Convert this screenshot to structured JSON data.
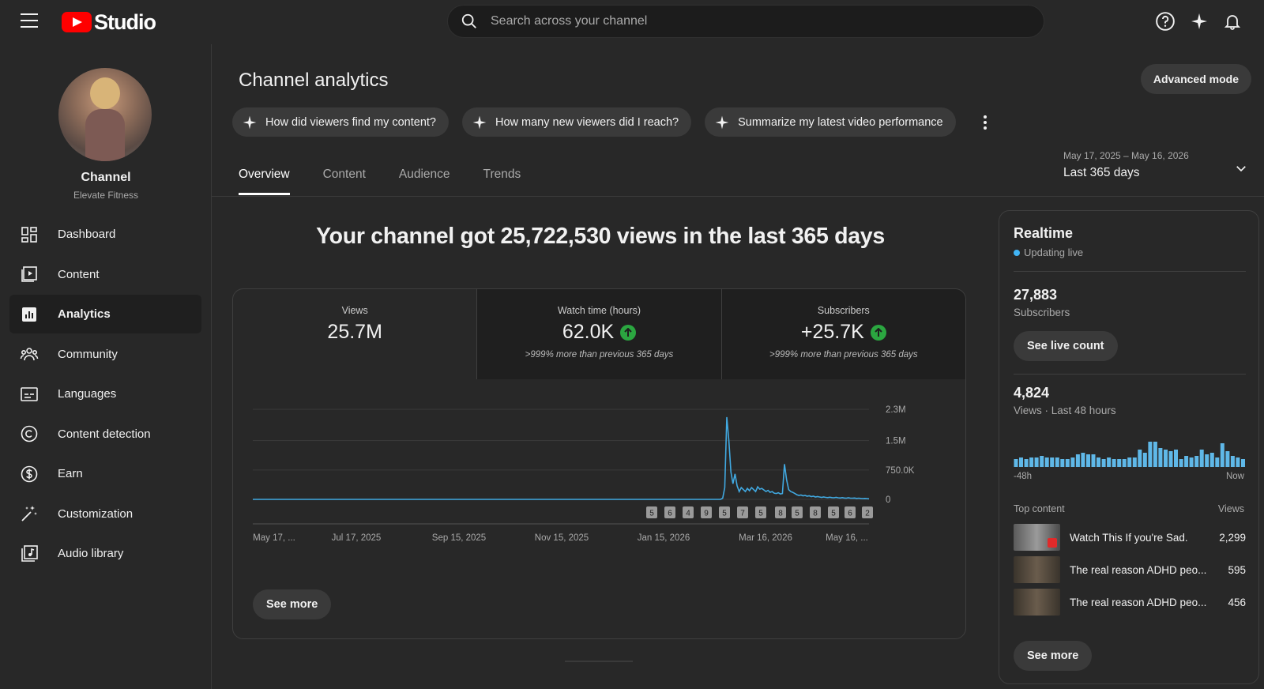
{
  "app": {
    "logo_text": "Studio"
  },
  "search": {
    "placeholder": "Search across your channel"
  },
  "channel": {
    "title": "Channel",
    "name": "Elevate Fitness"
  },
  "sidebar": {
    "items": [
      {
        "label": "Dashboard",
        "icon": "dashboard-icon"
      },
      {
        "label": "Content",
        "icon": "content-icon"
      },
      {
        "label": "Analytics",
        "icon": "analytics-icon",
        "active": true
      },
      {
        "label": "Community",
        "icon": "community-icon"
      },
      {
        "label": "Languages",
        "icon": "languages-icon"
      },
      {
        "label": "Content detection",
        "icon": "copyright-icon"
      },
      {
        "label": "Earn",
        "icon": "dollar-icon"
      },
      {
        "label": "Customization",
        "icon": "magic-wand-icon"
      },
      {
        "label": "Audio library",
        "icon": "audio-library-icon"
      }
    ]
  },
  "main": {
    "title": "Channel analytics",
    "advanced_mode": "Advanced mode",
    "chips": [
      "How did viewers find my content?",
      "How many new viewers did I reach?",
      "Summarize my latest video performance"
    ],
    "tabs": [
      "Overview",
      "Content",
      "Audience",
      "Trends"
    ],
    "date_range": {
      "dates": "May 17, 2025 – May 16, 2026",
      "label": "Last 365 days"
    },
    "headline": "Your channel got 25,722,530 views in the last 365 days",
    "metrics": [
      {
        "label": "Views",
        "value": "25.7M",
        "note": ""
      },
      {
        "label": "Watch time (hours)",
        "value": "62.0K",
        "note": ">999% more than previous 365 days"
      },
      {
        "label": "Subscribers",
        "value": "+25.7K",
        "note": ">999% more than previous 365 days"
      }
    ],
    "see_more": "See more"
  },
  "chart_data": {
    "type": "line",
    "x_labels": [
      "May 17, ...",
      "Jul 17, 2025",
      "Sep 15, 2025",
      "Nov 15, 2025",
      "Jan 15, 2026",
      "Mar 16, 2026",
      "May 16, ..."
    ],
    "y_ticks": [
      "0",
      "750.0K",
      "1.5M",
      "2.3M"
    ],
    "ylim": [
      0,
      2300000
    ],
    "series": [
      {
        "color": "#41a9e1",
        "values": [
          0,
          0,
          0,
          0,
          0,
          0,
          0,
          0,
          0,
          0,
          0,
          0,
          0,
          0,
          0,
          0,
          0,
          0,
          0,
          0,
          0,
          0,
          0,
          0,
          0,
          0,
          0,
          0,
          0,
          0,
          0,
          0,
          0,
          0,
          0,
          0,
          0,
          0,
          0,
          0,
          0,
          0,
          0,
          0,
          0,
          0,
          0,
          0,
          0,
          0,
          0,
          0,
          0,
          0,
          0,
          0,
          0,
          0,
          0,
          0,
          0,
          0,
          0,
          0,
          0,
          0,
          0,
          0,
          0,
          0,
          0,
          0,
          0,
          0,
          0,
          0,
          0,
          0,
          0,
          0,
          0,
          0,
          0,
          0,
          0,
          0,
          0,
          0,
          0,
          0,
          0,
          0,
          0,
          0,
          0,
          0,
          0,
          0,
          0,
          0,
          0,
          0,
          0,
          0,
          0,
          0,
          0,
          0,
          0,
          0,
          0,
          0,
          0,
          0,
          0,
          0,
          0,
          0,
          0,
          0,
          0,
          0,
          0,
          0,
          0,
          0,
          0,
          0,
          0,
          0,
          0,
          0,
          0,
          0,
          0,
          0,
          0,
          0,
          0,
          0,
          0,
          0,
          0,
          0,
          0,
          0,
          0,
          0,
          0,
          0,
          0,
          0,
          0,
          0,
          0,
          0,
          0,
          0,
          0,
          0,
          0,
          0,
          0,
          0,
          0,
          0,
          0,
          0,
          0,
          0,
          0,
          0,
          0,
          0,
          0,
          0,
          0,
          0,
          0,
          0,
          0,
          0,
          0,
          0,
          0,
          0,
          0,
          0,
          0,
          0,
          0,
          0,
          0,
          0,
          0,
          0,
          0,
          0,
          0,
          0,
          0,
          0,
          0,
          0,
          0,
          0,
          0,
          0,
          0,
          0,
          0,
          0,
          0,
          0,
          0,
          0,
          0,
          0,
          0,
          0,
          0,
          0,
          0,
          0,
          0,
          0,
          0,
          0,
          30000,
          300000,
          2100000,
          1500000,
          700000,
          400000,
          650000,
          350000,
          200000,
          300000,
          250000,
          200000,
          280000,
          220000,
          300000,
          250000,
          200000,
          320000,
          260000,
          280000,
          240000,
          200000,
          230000,
          180000,
          200000,
          160000,
          150000,
          170000,
          140000,
          150000,
          900000,
          500000,
          250000,
          200000,
          180000,
          150000,
          120000,
          100000,
          110000,
          90000,
          100000,
          80000,
          90000,
          70000,
          80000,
          60000,
          70000,
          60000,
          50000,
          60000,
          50000,
          45000,
          55000,
          45000,
          40000,
          50000,
          40000,
          35000,
          45000,
          35000,
          30000,
          40000,
          30000,
          30000,
          35000,
          25000,
          30000,
          25000,
          20000,
          25000,
          20000,
          15000
        ]
      }
    ],
    "annotations": [
      "5",
      "6",
      "4",
      "9",
      "5",
      "7",
      "5",
      "8",
      "5",
      "8",
      "5",
      "6",
      "2"
    ]
  },
  "realtime": {
    "title": "Realtime",
    "status": "Updating live",
    "subscribers_value": "27,883",
    "subscribers_label": "Subscribers",
    "see_live_count": "See live count",
    "views_value": "4,824",
    "views_label": "Views · Last 48 hours",
    "axis_start": "-48h",
    "axis_end": "Now",
    "bars": [
      5,
      6,
      5,
      6,
      6,
      7,
      6,
      6,
      6,
      5,
      5,
      6,
      8,
      9,
      8,
      8,
      6,
      5,
      6,
      5,
      5,
      5,
      6,
      6,
      11,
      9,
      16,
      16,
      12,
      11,
      10,
      11,
      5,
      7,
      6,
      7,
      11,
      8,
      9,
      6,
      15,
      10,
      7,
      6,
      5
    ],
    "top_content_label": "Top content",
    "views_col_label": "Views",
    "top_content": [
      {
        "title": "Watch This If you're Sad.",
        "views": "2,299"
      },
      {
        "title": "The real reason ADHD peo...",
        "views": "595"
      },
      {
        "title": "The real reason ADHD peo...",
        "views": "456"
      }
    ],
    "see_more": "See more"
  }
}
